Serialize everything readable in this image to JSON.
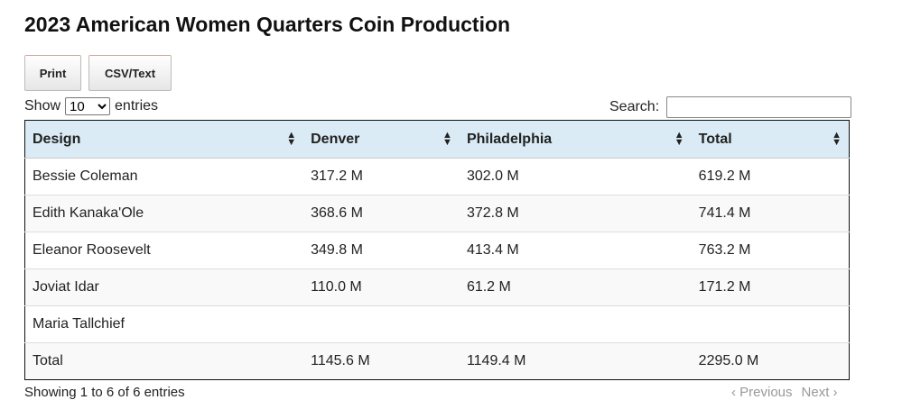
{
  "title": "2023 American Women Quarters Coin Production",
  "buttons": {
    "print": "Print",
    "csv": "CSV/Text"
  },
  "length": {
    "show": "Show",
    "value": "10",
    "entries": "entries"
  },
  "search": {
    "label": "Search:",
    "value": ""
  },
  "columns": [
    "Design",
    "Denver",
    "Philadelphia",
    "Total"
  ],
  "rows": [
    [
      "Bessie Coleman",
      "317.2 M",
      "302.0 M",
      "619.2 M"
    ],
    [
      "Edith Kanaka'Ole",
      "368.6 M",
      "372.8 M",
      "741.4 M"
    ],
    [
      "Eleanor Roosevelt",
      "349.8 M",
      "413.4 M",
      "763.2 M"
    ],
    [
      "Joviat Idar",
      "110.0 M",
      "61.2 M",
      "171.2 M"
    ],
    [
      "Maria Tallchief",
      "",
      "",
      ""
    ],
    [
      "Total",
      "1145.6 M",
      "1149.4 M",
      "2295.0 M"
    ]
  ],
  "footer": {
    "info": "Showing 1 to 6 of 6 entries",
    "previous": "‹ Previous",
    "next": "Next ›"
  }
}
